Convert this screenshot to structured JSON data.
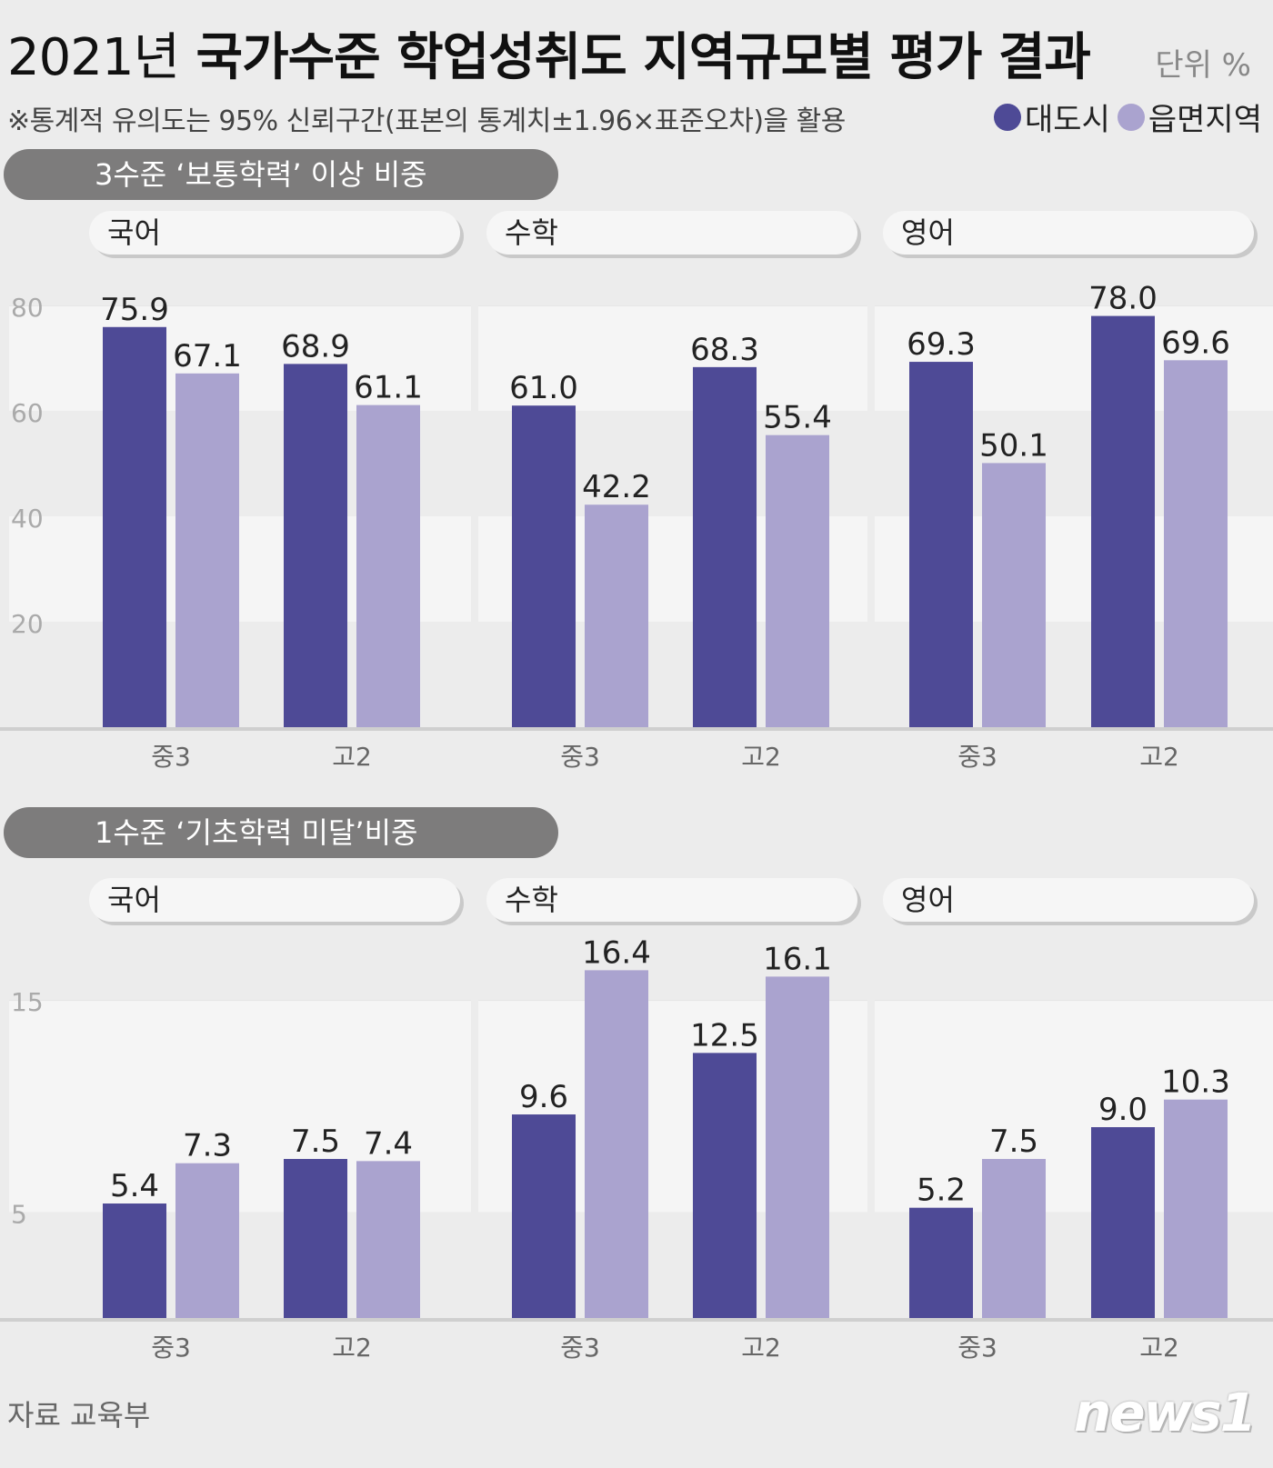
{
  "title": {
    "year": "2021년",
    "main": "국가수준 학업성취도 지역규모별 평가 결과"
  },
  "unit": "단위 %",
  "note": "※통계적 유의도는 95% 신뢰구간(표본의 통계치±1.96×표준오차)을 활용",
  "legend": [
    {
      "label": "대도시",
      "color": "#4e4a96"
    },
    {
      "label": "읍면지역",
      "color": "#aaa3cf"
    }
  ],
  "source": "자료 교육부",
  "logo": "news1",
  "chart_data": [
    {
      "type": "bar",
      "title": "3수준 ‘보통학력’ 이상 비중",
      "ylim": [
        0,
        80
      ],
      "yticks": [
        20,
        40,
        60,
        80
      ],
      "panels": [
        {
          "subject": "국어",
          "categories": [
            "중3",
            "고2"
          ],
          "series": [
            {
              "name": "대도시",
              "values": [
                75.9,
                68.9
              ]
            },
            {
              "name": "읍면지역",
              "values": [
                67.1,
                61.1
              ]
            }
          ]
        },
        {
          "subject": "수학",
          "categories": [
            "중3",
            "고2"
          ],
          "series": [
            {
              "name": "대도시",
              "values": [
                61.0,
                68.3
              ]
            },
            {
              "name": "읍면지역",
              "values": [
                42.2,
                55.4
              ]
            }
          ]
        },
        {
          "subject": "영어",
          "categories": [
            "중3",
            "고2"
          ],
          "series": [
            {
              "name": "대도시",
              "values": [
                69.3,
                78.0
              ]
            },
            {
              "name": "읍면지역",
              "values": [
                50.1,
                69.6
              ]
            }
          ]
        }
      ]
    },
    {
      "type": "bar",
      "title": "1수준 ‘기초학력 미달’비중",
      "ylim": [
        0,
        20
      ],
      "yticks": [
        5,
        15
      ],
      "panels": [
        {
          "subject": "국어",
          "categories": [
            "중3",
            "고2"
          ],
          "series": [
            {
              "name": "대도시",
              "values": [
                5.4,
                7.5
              ]
            },
            {
              "name": "읍면지역",
              "values": [
                7.3,
                7.4
              ]
            }
          ]
        },
        {
          "subject": "수학",
          "categories": [
            "중3",
            "고2"
          ],
          "series": [
            {
              "name": "대도시",
              "values": [
                9.6,
                12.5
              ]
            },
            {
              "name": "읍면지역",
              "values": [
                16.4,
                16.1
              ]
            }
          ]
        },
        {
          "subject": "영어",
          "categories": [
            "중3",
            "고2"
          ],
          "series": [
            {
              "name": "대도시",
              "values": [
                5.2,
                9.0
              ]
            },
            {
              "name": "읍면지역",
              "values": [
                7.5,
                10.3
              ]
            }
          ]
        }
      ]
    }
  ]
}
